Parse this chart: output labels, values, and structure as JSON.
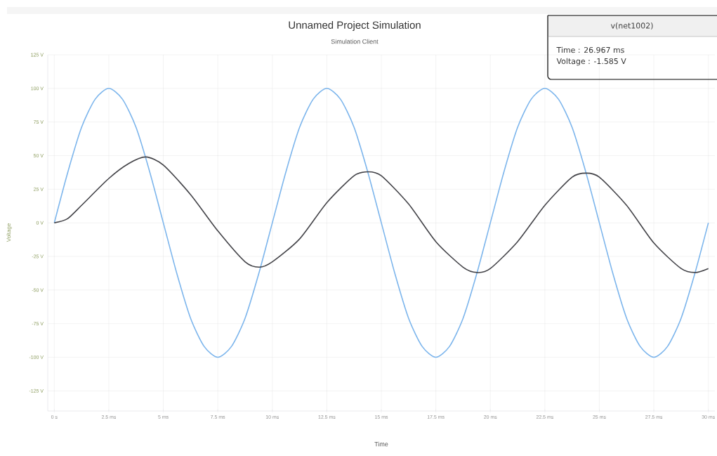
{
  "chart_data": {
    "type": "line",
    "title": "Unnamed Project Simulation",
    "subtitle": "Simulation Client",
    "xlabel": "Time",
    "ylabel": "Voltage",
    "xlim": [
      -0.3,
      30.3
    ],
    "ylim": [
      -140,
      125
    ],
    "xticks": [
      {
        "value": 0,
        "label": "0 s"
      },
      {
        "value": 2.5,
        "label": "2.5 ms"
      },
      {
        "value": 5,
        "label": "5 ms"
      },
      {
        "value": 7.5,
        "label": "7.5 ms"
      },
      {
        "value": 10,
        "label": "10 ms"
      },
      {
        "value": 12.5,
        "label": "12.5 ms"
      },
      {
        "value": 15,
        "label": "15 ms"
      },
      {
        "value": 17.5,
        "label": "17.5 ms"
      },
      {
        "value": 20,
        "label": "20 ms"
      },
      {
        "value": 22.5,
        "label": "22.5 ms"
      },
      {
        "value": 25,
        "label": "25 ms"
      },
      {
        "value": 27.5,
        "label": "27.5 ms"
      },
      {
        "value": 30,
        "label": "30 ms"
      }
    ],
    "yticks": [
      {
        "value": -125,
        "label": "-125 V"
      },
      {
        "value": -100,
        "label": "-100 V"
      },
      {
        "value": -75,
        "label": "-75 V"
      },
      {
        "value": -50,
        "label": "-50 V"
      },
      {
        "value": -25,
        "label": "-25 V"
      },
      {
        "value": 0,
        "label": "0 V"
      },
      {
        "value": 25,
        "label": "25 V"
      },
      {
        "value": 50,
        "label": "50 V"
      },
      {
        "value": 75,
        "label": "75 V"
      },
      {
        "value": 100,
        "label": "100 V"
      },
      {
        "value": 125,
        "label": "125 V"
      }
    ],
    "grid": true,
    "marker": "none",
    "line_style": "solid",
    "annotations": [
      "v(net1002)",
      "Time      : 26.967 ms",
      "Voltage : -1.585 V"
    ],
    "series": [
      {
        "color": "#7cb5ec",
        "x": [
          0,
          0.625,
          1.25,
          1.875,
          2.5,
          3.125,
          3.75,
          4.375,
          5,
          5.625,
          6.25,
          6.875,
          7.5,
          8.125,
          8.75,
          9.375,
          10,
          10.625,
          11.25,
          11.875,
          12.5,
          13.125,
          13.75,
          14.375,
          15,
          15.625,
          16.25,
          16.875,
          17.5,
          18.125,
          18.75,
          19.375,
          20,
          20.625,
          21.25,
          21.875,
          22.5,
          23.125,
          23.75,
          24.375,
          25,
          25.625,
          26.25,
          26.875,
          27.5,
          28.125,
          28.75,
          29.375,
          30
        ],
        "values": [
          0,
          38,
          71,
          92,
          100,
          92,
          71,
          38,
          0,
          -38,
          -71,
          -92,
          -100,
          -92,
          -71,
          -38,
          0,
          38,
          71,
          92,
          100,
          92,
          71,
          38,
          0,
          -38,
          -71,
          -92,
          -100,
          -92,
          -71,
          -38,
          0,
          38,
          71,
          92,
          100,
          92,
          71,
          38,
          0,
          -38,
          -71,
          -92,
          -100,
          -92,
          -71,
          -38,
          0
        ]
      },
      {
        "color": "#434348",
        "x": [
          0,
          0.6,
          1.25,
          2.5,
          3.4,
          4.2,
          5,
          6.25,
          7.5,
          8.75,
          9.4,
          10,
          11.25,
          12.5,
          13.75,
          14.4,
          15,
          16.25,
          17.5,
          18.75,
          19.4,
          20,
          21.25,
          22.5,
          23.75,
          24.4,
          25,
          26.25,
          27.5,
          28.75,
          29.4,
          30
        ],
        "values": [
          0,
          3,
          13,
          33,
          44,
          49,
          43,
          21,
          -6,
          -29,
          -33,
          -29,
          -12,
          15,
          35,
          38,
          35,
          14,
          -14,
          -33,
          -37,
          -34,
          -14,
          13,
          34,
          37,
          34,
          13,
          -15,
          -34,
          -37,
          -34
        ]
      }
    ]
  }
}
